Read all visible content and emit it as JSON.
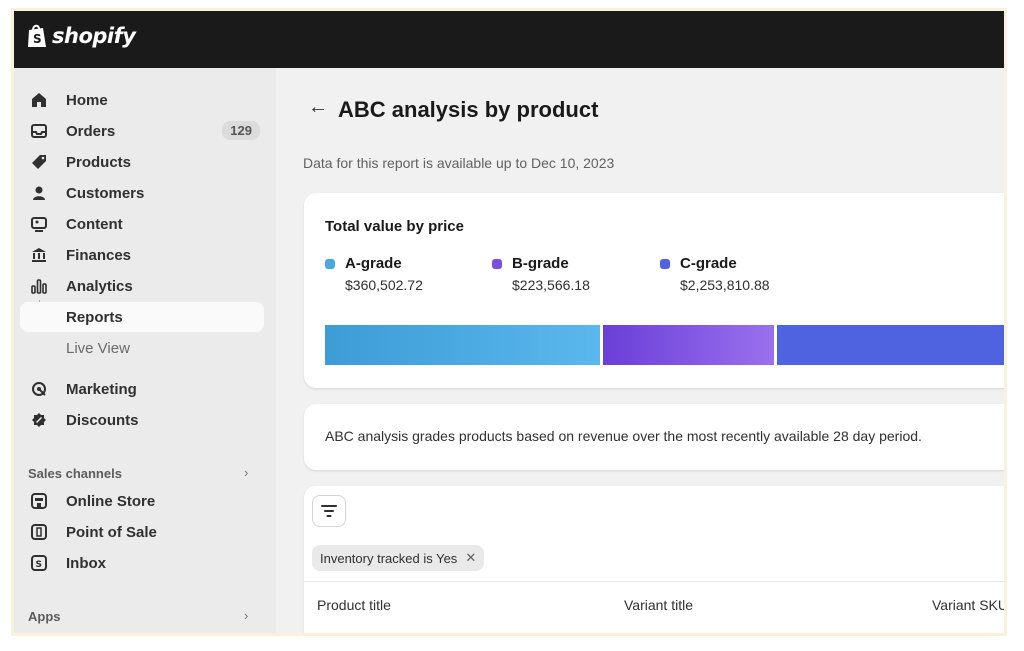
{
  "brand": {
    "name": "shopify"
  },
  "sidebar": {
    "items": [
      {
        "label": "Home",
        "icon": "home-icon"
      },
      {
        "label": "Orders",
        "icon": "orders-icon",
        "badge": "129"
      },
      {
        "label": "Products",
        "icon": "tag-icon"
      },
      {
        "label": "Customers",
        "icon": "person-icon"
      },
      {
        "label": "Content",
        "icon": "content-icon"
      },
      {
        "label": "Finances",
        "icon": "bank-icon"
      },
      {
        "label": "Analytics",
        "icon": "bar-chart-icon"
      },
      {
        "label": "Reports",
        "active": true
      },
      {
        "label": "Live View"
      },
      {
        "label": "Marketing",
        "icon": "target-icon"
      },
      {
        "label": "Discounts",
        "icon": "discount-icon"
      }
    ],
    "sales_channels": {
      "label": "Sales channels",
      "items": [
        {
          "label": "Online Store",
          "icon": "store-icon"
        },
        {
          "label": "Point of Sale",
          "icon": "pos-icon"
        },
        {
          "label": "Inbox",
          "icon": "inbox-icon"
        }
      ]
    },
    "apps": {
      "label": "Apps"
    }
  },
  "page": {
    "back": "←",
    "title": "ABC analysis by product",
    "subtitle": "Data for this report is available up to Dec 10, 2023"
  },
  "value_card": {
    "title": "Total value by price",
    "grades": [
      {
        "name": "A-grade",
        "value": "$360,502.72",
        "amount": 360502.72,
        "color": "#4aa8e0"
      },
      {
        "name": "B-grade",
        "value": "$223,566.18",
        "amount": 223566.18,
        "color": "#7a4fe0"
      },
      {
        "name": "C-grade",
        "value": "$2,253,810.88",
        "amount": 2253810.88,
        "color": "#4f63e0"
      }
    ]
  },
  "info_card": {
    "text": "ABC analysis grades products based on revenue over the most recently available 28 day period."
  },
  "table": {
    "filter_chip": "Inventory tracked is Yes",
    "chip_close": "✕",
    "columns": [
      "Product title",
      "Variant title",
      "Variant SKU"
    ]
  }
}
